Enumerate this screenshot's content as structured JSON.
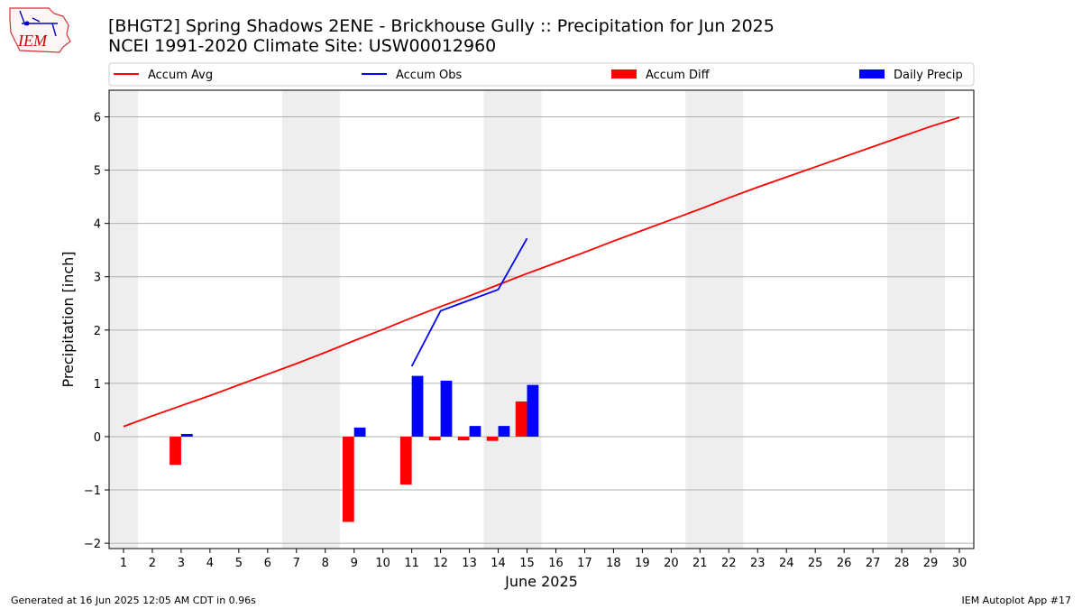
{
  "header": {
    "logo_text": "IEM",
    "title_line1": "[BHGT2] Spring Shadows 2ENE - Brickhouse Gully :: Precipitation for Jun 2025",
    "title_line2": "NCEI 1991-2020 Climate Site: USW00012960"
  },
  "footer": {
    "left": "Generated at 16 Jun 2025 12:05 AM CDT in 0.96s",
    "right": "IEM Autoplot App #17"
  },
  "colors": {
    "accum_avg": "#ff0000",
    "accum_obs": "#0000ff",
    "accum_diff": "#ff0000",
    "daily_precip": "#0000ff",
    "weekend_shade": "#eeeeee",
    "grid": "#b0b0b0"
  },
  "chart_data": {
    "type": "bar",
    "xlabel": "June 2025",
    "ylabel": "Precipitation [inch]",
    "xlim": [
      0.5,
      30.5
    ],
    "ylim": [
      -2.1,
      6.5
    ],
    "x_ticks": [
      1,
      2,
      3,
      4,
      5,
      6,
      7,
      8,
      9,
      10,
      11,
      12,
      13,
      14,
      15,
      16,
      17,
      18,
      19,
      20,
      21,
      22,
      23,
      24,
      25,
      26,
      27,
      28,
      29,
      30
    ],
    "y_ticks": [
      -2,
      -1,
      0,
      1,
      2,
      3,
      4,
      5,
      6
    ],
    "grid": "horizontal",
    "legend_position": "top",
    "weekend_spans": [
      [
        0.5,
        1.5
      ],
      [
        6.5,
        8.5
      ],
      [
        13.5,
        15.5
      ],
      [
        20.5,
        22.5
      ],
      [
        27.5,
        29.5
      ]
    ],
    "legend": [
      "Accum Avg",
      "Accum Obs",
      "Accum Diff",
      "Daily Precip"
    ],
    "series": [
      {
        "name": "Accum Avg",
        "type": "line",
        "x": [
          1,
          2,
          3,
          4,
          5,
          6,
          7,
          8,
          9,
          10,
          11,
          12,
          13,
          14,
          15,
          16,
          17,
          18,
          19,
          20,
          21,
          22,
          23,
          24,
          25,
          26,
          27,
          28,
          29,
          30
        ],
        "values": [
          0.19,
          0.39,
          0.58,
          0.77,
          0.97,
          1.17,
          1.37,
          1.58,
          1.8,
          2.01,
          2.23,
          2.44,
          2.64,
          2.85,
          3.06,
          3.26,
          3.46,
          3.67,
          3.87,
          4.07,
          4.27,
          4.48,
          4.68,
          4.87,
          5.06,
          5.25,
          5.44,
          5.63,
          5.82,
          5.99
        ]
      },
      {
        "name": "Accum Obs",
        "type": "line",
        "x": [
          11,
          12,
          13,
          14,
          15
        ],
        "values": [
          1.32,
          2.36,
          2.56,
          2.76,
          3.72
        ]
      },
      {
        "name": "Accum Diff",
        "type": "bar",
        "x": [
          3,
          9,
          11,
          12,
          13,
          14,
          15
        ],
        "values": [
          -0.53,
          -1.6,
          -0.9,
          -0.07,
          -0.07,
          -0.08,
          0.66
        ]
      },
      {
        "name": "Daily Precip",
        "type": "bar",
        "x": [
          3,
          9,
          11,
          12,
          13,
          14,
          15
        ],
        "values": [
          0.05,
          0.17,
          1.14,
          1.05,
          0.2,
          0.2,
          0.97
        ]
      }
    ]
  }
}
